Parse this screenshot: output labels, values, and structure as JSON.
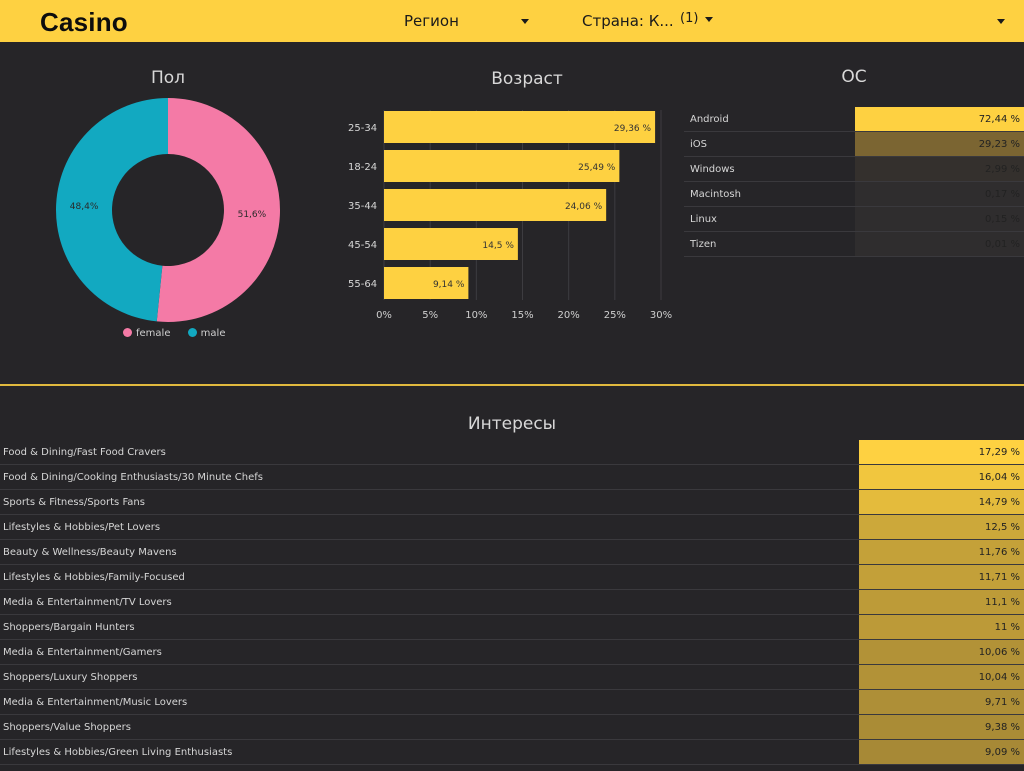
{
  "header": {
    "brand": "Casino",
    "region_label": "Регион",
    "country_label": "Страна: К...",
    "country_count": "(1)"
  },
  "gender": {
    "title": "Пол",
    "slices": [
      {
        "name": "female",
        "value": 51.6,
        "label": "51,6%",
        "color": "#f47aa6"
      },
      {
        "name": "male",
        "value": 48.4,
        "label": "48,4%",
        "color": "#12a9c1"
      }
    ]
  },
  "age": {
    "title": "Возраст",
    "bar_color": "#fed141"
  },
  "os": {
    "title": "ОС",
    "rows": [
      {
        "label": "Android",
        "value_text": "72,44 %",
        "share": 1.0,
        "color": "#fed141"
      },
      {
        "label": "iOS",
        "value_text": "29,23 %",
        "share": 1.0,
        "color": "#7b6532"
      },
      {
        "label": "Windows",
        "value_text": "2,99 %",
        "share": 1.0,
        "color": "#34302d"
      },
      {
        "label": "Macintosh",
        "value_text": "0,17 %",
        "share": 1.0,
        "color": "#2f2d2e"
      },
      {
        "label": "Linux",
        "value_text": "0,15 %",
        "share": 1.0,
        "color": "#2f2d2e"
      },
      {
        "label": "Tizen",
        "value_text": "0,01 %",
        "share": 1.0,
        "color": "#2f2d2e"
      }
    ]
  },
  "interests": {
    "title": "Интересы",
    "rows": [
      {
        "label": "Food & Dining/Fast Food Cravers",
        "value_text": "17,29 %",
        "color": "#fed141"
      },
      {
        "label": "Food & Dining/Cooking Enthusiasts/30 Minute Chefs",
        "value_text": "16,04 %",
        "color": "#f1c63e"
      },
      {
        "label": "Sports & Fitness/Sports Fans",
        "value_text": "14,79 %",
        "color": "#e4bb3c"
      },
      {
        "label": "Lifestyles & Hobbies/Pet Lovers",
        "value_text": "12,5 %",
        "color": "#cca83a"
      },
      {
        "label": "Beauty & Wellness/Beauty Mavens",
        "value_text": "11,76 %",
        "color": "#c4a139"
      },
      {
        "label": "Lifestyles & Hobbies/Family-Focused",
        "value_text": "11,71 %",
        "color": "#c3a039"
      },
      {
        "label": "Media & Entertainment/TV Lovers",
        "value_text": "11,1 %",
        "color": "#bd9b38"
      },
      {
        "label": "Shoppers/Bargain Hunters",
        "value_text": "11 %",
        "color": "#bc9a38"
      },
      {
        "label": "Media & Entertainment/Gamers",
        "value_text": "10,06 %",
        "color": "#b29237"
      },
      {
        "label": "Shoppers/Luxury Shoppers",
        "value_text": "10,04 %",
        "color": "#b29237"
      },
      {
        "label": "Media & Entertainment/Music Lovers",
        "value_text": "9,71 %",
        "color": "#ae8f37"
      },
      {
        "label": "Shoppers/Value Shoppers",
        "value_text": "9,38 %",
        "color": "#aa8c36"
      },
      {
        "label": "Lifestyles & Hobbies/Green Living Enthusiasts",
        "value_text": "9,09 %",
        "color": "#a78936"
      }
    ]
  },
  "chart_data": [
    {
      "type": "pie",
      "title": "Пол",
      "categories": [
        "female",
        "male"
      ],
      "values": [
        51.6,
        48.4
      ],
      "legend": "bottom"
    },
    {
      "type": "bar",
      "orientation": "horizontal",
      "title": "Возраст",
      "categories": [
        "25-34",
        "18-24",
        "35-44",
        "45-54",
        "55-64"
      ],
      "values": [
        29.36,
        25.49,
        24.06,
        14.5,
        9.14
      ],
      "value_labels": [
        "29,36 %",
        "25,49 %",
        "24,06 %",
        "14,5 %",
        "9,14 %"
      ],
      "xlim": [
        0,
        30
      ],
      "xticks": [
        "0%",
        "5%",
        "10%",
        "15%",
        "20%",
        "25%",
        "30%"
      ],
      "grid": true
    }
  ]
}
